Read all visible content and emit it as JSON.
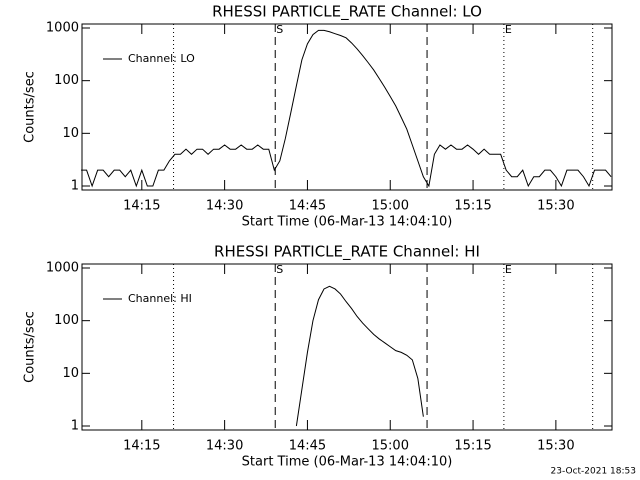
{
  "chart_data": [
    {
      "type": "line",
      "title": "RHESSI PARTICLE_RATE Channel: LO",
      "xlabel": "Start Time (06-Mar-13 14:04:10)",
      "ylabel": "Counts/sec",
      "xlim": [
        "14:04:10",
        "15:40:10"
      ],
      "xticks": [
        "14:15",
        "14:30",
        "14:45",
        "15:00",
        "15:15",
        "15:30"
      ],
      "ylim": [
        1,
        1000
      ],
      "yticks": [
        1,
        10,
        100,
        1000
      ],
      "log_y": true,
      "legend": "upper left",
      "markers": [
        {
          "x": "14:20:45",
          "style": "dotted"
        },
        {
          "x": "14:39:10",
          "style": "dashed",
          "label": "S"
        },
        {
          "x": "15:06:40",
          "style": "dashed"
        },
        {
          "x": "15:20:35",
          "style": "dotted",
          "label": "E"
        },
        {
          "x": "15:36:40",
          "style": "dotted"
        }
      ],
      "x": [
        "14:04",
        "14:05",
        "14:06",
        "14:07",
        "14:08",
        "14:09",
        "14:10",
        "14:11",
        "14:12",
        "14:13",
        "14:14",
        "14:15",
        "14:16",
        "14:17",
        "14:18",
        "14:19",
        "14:20",
        "14:21",
        "14:22",
        "14:23",
        "14:24",
        "14:25",
        "14:26",
        "14:27",
        "14:28",
        "14:29",
        "14:30",
        "14:31",
        "14:32",
        "14:33",
        "14:34",
        "14:35",
        "14:36",
        "14:37",
        "14:38",
        "14:39",
        "14:40",
        "14:41",
        "14:42",
        "14:43",
        "14:44",
        "14:45",
        "14:46",
        "14:47",
        "14:48",
        "14:49",
        "14:50",
        "14:51",
        "14:52",
        "14:53",
        "14:54",
        "14:55",
        "14:56",
        "14:57",
        "14:58",
        "14:59",
        "15:00",
        "15:01",
        "15:02",
        "15:03",
        "15:04",
        "15:05",
        "15:06",
        "15:07",
        "15:08",
        "15:09",
        "15:10",
        "15:11",
        "15:12",
        "15:13",
        "15:14",
        "15:15",
        "15:16",
        "15:17",
        "15:18",
        "15:19",
        "15:20",
        "15:21",
        "15:22",
        "15:23",
        "15:24",
        "15:25",
        "15:26",
        "15:27",
        "15:28",
        "15:29",
        "15:30",
        "15:31",
        "15:32",
        "15:33",
        "15:34",
        "15:35",
        "15:36",
        "15:37",
        "15:38",
        "15:39",
        "15:40"
      ],
      "series": [
        {
          "name": "Channel: LO",
          "color": "#000000",
          "values": [
            2,
            2,
            1,
            2,
            2,
            1.5,
            2,
            2,
            1.5,
            2,
            1,
            2,
            1,
            1,
            2,
            2,
            3,
            4,
            4,
            5,
            4,
            5,
            5,
            4,
            5,
            5,
            6,
            5,
            5,
            6,
            5,
            5,
            6,
            5,
            5,
            2,
            3,
            8,
            25,
            80,
            250,
            500,
            750,
            900,
            900,
            850,
            780,
            720,
            650,
            520,
            400,
            300,
            220,
            160,
            110,
            75,
            50,
            33,
            20,
            12,
            6,
            3,
            1.5,
            1,
            4,
            6,
            5,
            6,
            5,
            5,
            6,
            5,
            4,
            5,
            4,
            4,
            4,
            2,
            1.5,
            1.5,
            2,
            1,
            1.5,
            1.5,
            2,
            2,
            1.5,
            1,
            2,
            2,
            2,
            1.5,
            1,
            2,
            2,
            2,
            1.5
          ]
        }
      ]
    },
    {
      "type": "line",
      "title": "RHESSI PARTICLE_RATE Channel: HI",
      "xlabel": "Start Time (06-Mar-13 14:04:10)",
      "ylabel": "Counts/sec",
      "xlim": [
        "14:04:10",
        "15:40:10"
      ],
      "xticks": [
        "14:15",
        "14:30",
        "14:45",
        "15:00",
        "15:15",
        "15:30"
      ],
      "ylim": [
        1,
        1000
      ],
      "yticks": [
        1,
        10,
        100,
        1000
      ],
      "log_y": true,
      "legend": "upper left",
      "markers": [
        {
          "x": "14:20:45",
          "style": "dotted"
        },
        {
          "x": "14:39:10",
          "style": "dashed",
          "label": "S"
        },
        {
          "x": "15:06:40",
          "style": "dashed"
        },
        {
          "x": "15:20:35",
          "style": "dotted",
          "label": "E"
        },
        {
          "x": "15:36:40",
          "style": "dotted"
        }
      ],
      "x": [
        "14:04",
        "14:05",
        "14:06",
        "14:07",
        "14:08",
        "14:09",
        "14:10",
        "14:11",
        "14:12",
        "14:13",
        "14:14",
        "14:15",
        "14:16",
        "14:17",
        "14:18",
        "14:19",
        "14:20",
        "14:21",
        "14:22",
        "14:23",
        "14:24",
        "14:25",
        "14:26",
        "14:27",
        "14:28",
        "14:29",
        "14:30",
        "14:31",
        "14:32",
        "14:33",
        "14:34",
        "14:35",
        "14:36",
        "14:37",
        "14:38",
        "14:39",
        "14:40",
        "14:41",
        "14:42",
        "14:43",
        "14:44",
        "14:45",
        "14:46",
        "14:47",
        "14:48",
        "14:49",
        "14:50",
        "14:51",
        "14:52",
        "14:53",
        "14:54",
        "14:55",
        "14:56",
        "14:57",
        "14:58",
        "14:59",
        "15:00",
        "15:01",
        "15:02",
        "15:03",
        "15:04",
        "15:05",
        "15:06",
        "15:07",
        "15:08",
        "15:09",
        "15:10",
        "15:11",
        "15:12",
        "15:13",
        "15:14",
        "15:15",
        "15:16",
        "15:17",
        "15:18",
        "15:19",
        "15:20",
        "15:21",
        "15:22",
        "15:23",
        "15:24",
        "15:25",
        "15:26",
        "15:27",
        "15:28",
        "15:29",
        "15:30",
        "15:31",
        "15:32",
        "15:33",
        "15:34",
        "15:35",
        "15:36",
        "15:37",
        "15:38",
        "15:39",
        "15:40"
      ],
      "series": [
        {
          "name": "Channel: HI",
          "color": "#000000",
          "values": [
            null,
            null,
            null,
            null,
            null,
            null,
            null,
            null,
            null,
            null,
            null,
            null,
            null,
            null,
            null,
            null,
            null,
            null,
            null,
            null,
            null,
            null,
            null,
            null,
            null,
            null,
            null,
            null,
            null,
            null,
            null,
            null,
            null,
            null,
            null,
            null,
            null,
            null,
            null,
            1,
            5,
            25,
            100,
            250,
            400,
            450,
            400,
            320,
            230,
            170,
            120,
            90,
            70,
            55,
            45,
            38,
            32,
            27,
            25,
            22,
            18,
            8,
            1.5,
            null,
            null,
            null,
            null,
            null,
            null,
            null,
            null,
            null,
            null,
            null,
            null,
            null,
            null,
            null,
            null,
            null,
            null,
            null,
            null,
            null,
            null,
            null,
            null,
            null,
            null,
            null,
            null,
            null,
            null,
            null,
            null,
            null,
            null
          ]
        }
      ]
    }
  ],
  "footer": "23-Oct-2021 18:53"
}
